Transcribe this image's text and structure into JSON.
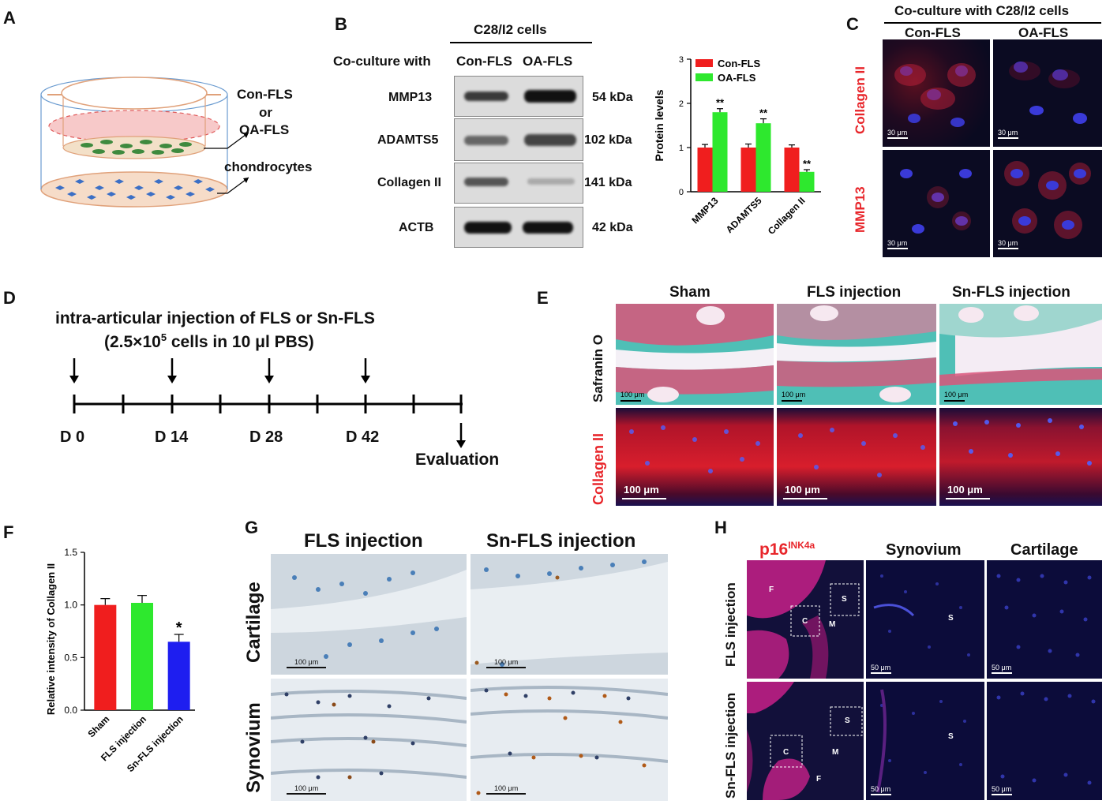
{
  "panels": {
    "A": "A",
    "B": "B",
    "C": "C",
    "D": "D",
    "E": "E",
    "F": "F",
    "G": "G",
    "H": "H"
  },
  "panelA": {
    "label_top": "Con-FLS",
    "label_or": "or",
    "label_bottom": "OA-FLS",
    "label_chondro": "chondrocytes"
  },
  "panelB": {
    "cells_header": "C28/I2 cells",
    "coculture_label": "Co-culture with",
    "lanes": [
      "Con-FLS",
      "OA-FLS"
    ],
    "proteins": [
      "MMP13",
      "ADAMTS5",
      "Collagen II",
      "ACTB"
    ],
    "sizes": [
      "54 kDa",
      "102 kDa",
      "141 kDa",
      "42 kDa"
    ]
  },
  "colors": {
    "con_fls": "#f01e1e",
    "oa_fls": "#2ee82e",
    "sn_fls": "#1e1ef0",
    "red_text": "#e8262b"
  },
  "chart_data": [
    {
      "type": "bar",
      "categories": [
        "MMP13",
        "ADAMTS5",
        "Collagen II"
      ],
      "series": [
        {
          "name": "Con-FLS",
          "values": [
            1.0,
            1.0,
            1.0
          ],
          "errors": [
            0.07,
            0.08,
            0.06
          ]
        },
        {
          "name": "OA-FLS",
          "values": [
            1.8,
            1.55,
            0.45
          ],
          "errors": [
            0.08,
            0.1,
            0.05
          ]
        }
      ],
      "annotations": [
        "**",
        "**",
        "**"
      ],
      "ylabel": "Protein levels",
      "yticks": [
        0,
        1,
        2,
        3
      ],
      "ylim": [
        0,
        3
      ],
      "legend": "top-left"
    },
    {
      "type": "bar",
      "categories": [
        "Sham",
        "FLS injection",
        "Sn-FLS injection"
      ],
      "values": [
        1.0,
        1.02,
        0.65
      ],
      "errors": [
        0.06,
        0.07,
        0.07
      ],
      "colors": [
        "#f01e1e",
        "#2ee82e",
        "#1e1ef0"
      ],
      "annotations": [
        "",
        "",
        "*"
      ],
      "ylabel": "Relative intensity of Collagen II",
      "yticks": [
        "0.0",
        "0.5",
        "1.0",
        "1.5"
      ],
      "ylim": [
        0,
        1.5
      ]
    }
  ],
  "panelC": {
    "header": "Co-culture with C28/I2 cells",
    "cols": [
      "Con-FLS",
      "OA-FLS"
    ],
    "rows": [
      "Collagen II",
      "MMP13"
    ],
    "scalebar": "30 μm"
  },
  "panelD": {
    "title_line1": "intra-articular injection of FLS or Sn-FLS",
    "title_line2_pre": "(2.5×10",
    "title_line2_sup": "5",
    "title_line2_post": " cells in 10 μl PBS)",
    "days": [
      "D 0",
      "D 14",
      "D 28",
      "D 42"
    ],
    "evaluation": "Evaluation"
  },
  "panelE": {
    "cols": [
      "Sham",
      "FLS injection",
      "Sn-FLS injection"
    ],
    "rows": [
      "Safranin O",
      "Collagen II"
    ],
    "scalebar": "100 μm"
  },
  "panelG": {
    "cols": [
      "FLS injection",
      "Sn-FLS injection"
    ],
    "rows": [
      "Cartilage",
      "Synovium"
    ],
    "scalebar": "100 μm"
  },
  "panelH": {
    "marker": "p16",
    "marker_sup": "INK4a",
    "cols": [
      "Synovium",
      "Cartilage"
    ],
    "rows": [
      "FLS injection",
      "Sn-FLS injection"
    ],
    "region_labels": {
      "f": "F",
      "c": "C",
      "s": "S",
      "m": "M"
    },
    "scalebar": "50 μm"
  }
}
